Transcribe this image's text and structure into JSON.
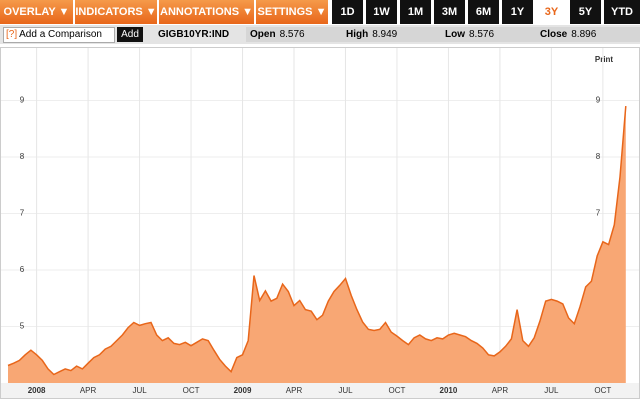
{
  "toolbar": {
    "menus": [
      "OVERLAY ▼",
      "INDICATORS ▼",
      "ANNOTATIONS ▼",
      "SETTINGS ▼"
    ],
    "ranges": [
      "1D",
      "1W",
      "1M",
      "3M",
      "6M",
      "1Y",
      "3Y",
      "5Y",
      "YTD"
    ],
    "selected_range": "3Y"
  },
  "infobar": {
    "help": "[?]",
    "comparison_placeholder": "Add a Comparison",
    "add_button": "Add",
    "ticker": "GIGB10YR:IND",
    "stats": [
      {
        "label": "Open",
        "value": 8.576
      },
      {
        "label": "High",
        "value": 8.949
      },
      {
        "label": "Low",
        "value": 8.576
      },
      {
        "label": "Close",
        "value": 8.896
      }
    ]
  },
  "chart_data": {
    "type": "area",
    "print_label": "Print",
    "color": "#e8661a",
    "fill": "#f8a774",
    "ylim": [
      4,
      10
    ],
    "yticks": [
      5,
      6,
      7,
      8,
      9
    ],
    "grid": true,
    "categories": [
      null,
      null,
      null,
      null,
      null,
      "2008",
      null,
      null,
      null,
      null,
      null,
      null,
      null,
      null,
      "APR",
      null,
      null,
      null,
      null,
      null,
      null,
      null,
      null,
      "JUL",
      null,
      null,
      null,
      null,
      null,
      null,
      null,
      null,
      "OCT",
      null,
      null,
      null,
      null,
      null,
      null,
      null,
      null,
      "2009",
      null,
      null,
      null,
      null,
      null,
      null,
      null,
      null,
      "APR",
      null,
      null,
      null,
      null,
      null,
      null,
      null,
      null,
      "JUL",
      null,
      null,
      null,
      null,
      null,
      null,
      null,
      null,
      "OCT",
      null,
      null,
      null,
      null,
      null,
      null,
      null,
      null,
      "2010",
      null,
      null,
      null,
      null,
      null,
      null,
      null,
      null,
      "APR",
      null,
      null,
      null,
      null,
      null,
      null,
      null,
      null,
      "JUL",
      null,
      null,
      null,
      null,
      null,
      null,
      null,
      null,
      "OCT",
      null,
      null,
      null,
      null
    ],
    "values": [
      4.31,
      4.35,
      4.4,
      4.5,
      4.58,
      4.5,
      4.4,
      4.25,
      4.15,
      4.2,
      4.25,
      4.22,
      4.3,
      4.25,
      4.35,
      4.45,
      4.5,
      4.6,
      4.65,
      4.75,
      4.85,
      4.98,
      5.07,
      5.02,
      5.05,
      5.07,
      4.85,
      4.75,
      4.8,
      4.7,
      4.68,
      4.72,
      4.66,
      4.72,
      4.78,
      4.75,
      4.58,
      4.42,
      4.3,
      4.2,
      4.45,
      4.5,
      4.75,
      5.9,
      5.46,
      5.63,
      5.45,
      5.5,
      5.75,
      5.62,
      5.37,
      5.46,
      5.3,
      5.27,
      5.12,
      5.2,
      5.45,
      5.62,
      5.73,
      5.85,
      5.55,
      5.3,
      5.08,
      4.95,
      4.93,
      4.95,
      5.07,
      4.9,
      4.83,
      4.75,
      4.68,
      4.8,
      4.85,
      4.78,
      4.75,
      4.8,
      4.78,
      4.85,
      4.88,
      4.85,
      4.82,
      4.75,
      4.7,
      4.62,
      4.5,
      4.48,
      4.55,
      4.65,
      4.78,
      5.3,
      4.75,
      4.65,
      4.8,
      5.1,
      5.45,
      5.48,
      5.45,
      5.4,
      5.15,
      5.05,
      5.35,
      5.7,
      5.8,
      6.25,
      6.5,
      6.45,
      6.8,
      7.65,
      8.9
    ]
  }
}
